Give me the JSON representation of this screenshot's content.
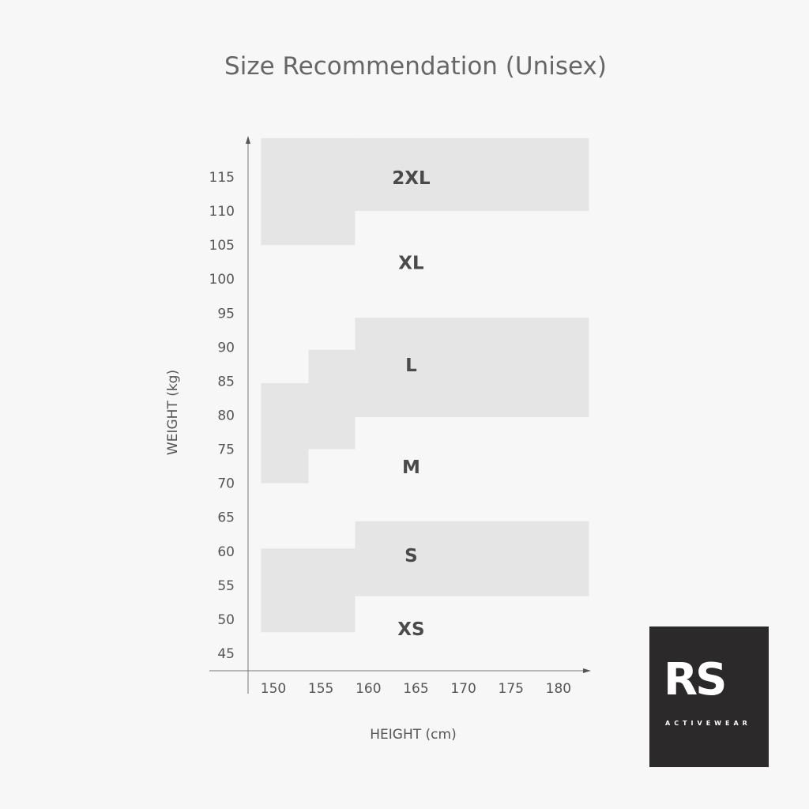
{
  "chart_data": {
    "type": "area",
    "title": "Size Recommendation (Unisex)",
    "xlabel": "HEIGHT (cm)",
    "ylabel": "WEIGHT (kg)",
    "xlim": [
      148.7,
      183.2
    ],
    "ylim": [
      45,
      120.7
    ],
    "x_ticks": [
      150,
      155,
      160,
      165,
      170,
      175,
      180
    ],
    "y_ticks": [
      45,
      50,
      55,
      60,
      65,
      70,
      75,
      80,
      85,
      90,
      95,
      100,
      105,
      110,
      115
    ],
    "grid": false,
    "shade_color": "#e5e5e5",
    "regions": [
      {
        "label": "2XL",
        "shaded": true,
        "label_pos": [
          165,
          115
        ],
        "rects": [
          [
            148.7,
            158.6,
            105,
            120.7
          ],
          [
            158.6,
            183.2,
            110,
            120.7
          ]
        ]
      },
      {
        "label": "XL",
        "shaded": false,
        "label_pos": [
          165,
          102.5
        ],
        "rects": []
      },
      {
        "label": "L",
        "shaded": true,
        "label_pos": [
          165,
          87.5
        ],
        "rects": [
          [
            158.6,
            183.2,
            79.7,
            94.3
          ],
          [
            153.7,
            158.6,
            75,
            89.6
          ],
          [
            148.7,
            153.7,
            70,
            84.7
          ]
        ]
      },
      {
        "label": "M",
        "shaded": false,
        "label_pos": [
          165,
          72.5
        ],
        "rects": []
      },
      {
        "label": "S",
        "shaded": true,
        "label_pos": [
          165,
          59.5
        ],
        "rects": [
          [
            158.6,
            183.2,
            53.4,
            64.4
          ],
          [
            148.7,
            158.6,
            48.1,
            60.4
          ]
        ]
      },
      {
        "label": "XS",
        "shaded": false,
        "label_pos": [
          165,
          48.7
        ],
        "rects": []
      }
    ]
  },
  "logo": {
    "mark": "RS",
    "tagline": "ACTIVEWEAR",
    "background": "#2b2929"
  }
}
